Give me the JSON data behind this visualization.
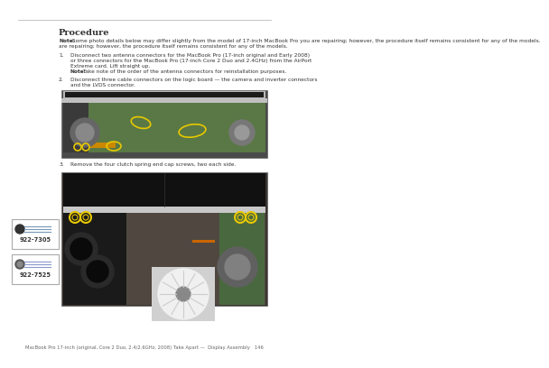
{
  "bg_color": "#ffffff",
  "top_line_color": "#bbbbbb",
  "title": "Procedure",
  "note_bold": "Note:",
  "note_rest": " Some photo details below may differ slightly from the model of 17-inch MacBook Pro you are repairing; however, the procedure itself remains consistent for any of the models.",
  "step1_num": "1.",
  "step1_text": "Disconnect two antenna connectors for the MacBook Pro (17-inch original and Early 2008)\nor three connectors for the MacBook Pro (17-inch Core 2 Duo and 2.4GHz) from the AirPort\nExtreme card. Lift straight up.",
  "step1_note_bold": "Note:",
  "step1_note_rest": " Take note of the order of the antenna connectors for reinstallation purposes.",
  "step2_num": "2.",
  "step2_text": "Disconnect three cable connectors on the logic board — the camera and inverter connectors\nand the LVDS connector.",
  "step3_num": "3.",
  "step3_text": "Remove the four clutch spring end cap screws, two each side.",
  "screw1_label": "922-7305",
  "screw2_label": "922-7525",
  "footer_text": "MacBook Pro 17-inch (original, Core 2 Duo, 2.4/2.6GHz, 2008) Take Apart —  Display Assembly   146",
  "img1_bg": "#8a9a70",
  "img1_pcb": "#7a9060",
  "img1_silver": "#c8c8c8",
  "img1_dark": "#303030",
  "img2_bg": "#787060",
  "img2_dark": "#1a1a1a",
  "img2_silver": "#d0d0d0",
  "img2_pcb": "#5a7a50",
  "img2_black": "#151515",
  "screw_highlight": "#e8c800",
  "text_color": "#333333",
  "text_fs": 4.2,
  "title_fs": 7.0,
  "footer_fs": 3.8,
  "label_fs": 4.8
}
